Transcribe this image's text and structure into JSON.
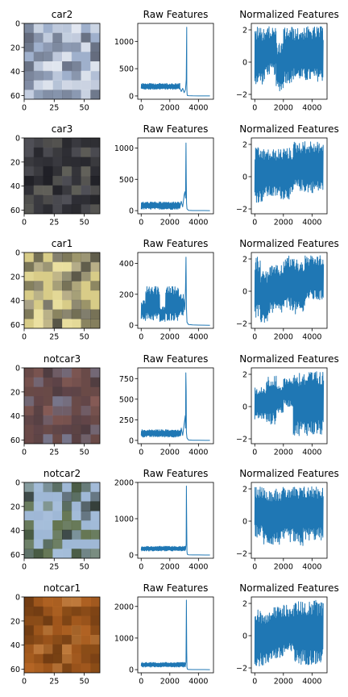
{
  "colors": {
    "line": "#1f77b4",
    "axes": "#000000",
    "background": "#ffffff"
  },
  "chart_data": [
    {
      "type": "image",
      "title": "car2",
      "xticks": [
        0,
        25,
        50
      ],
      "yticks": [
        0,
        20,
        40,
        60
      ],
      "xlim": [
        0,
        63
      ],
      "ylim": [
        63,
        0
      ],
      "image_colors": [
        "#9fb0cc",
        "#d7dde8",
        "#eef1f6",
        "#5a6070",
        "#7f8aa0"
      ]
    },
    {
      "type": "line",
      "title": "Raw Features",
      "xticks": [
        0,
        2000,
        4000
      ],
      "yticks": [
        0,
        500,
        1000
      ],
      "xlim": [
        -240,
        5050
      ],
      "ylim": [
        -60,
        1330
      ],
      "band": {
        "x_start": 0,
        "x_end": 2700,
        "low": 120,
        "high": 230
      },
      "x": [
        2700,
        2800,
        2900,
        3000,
        3100,
        3150,
        3180,
        3190,
        3200,
        3210,
        3220,
        3300,
        3600,
        4000,
        4800
      ],
      "y": [
        150,
        80,
        140,
        60,
        120,
        300,
        1260,
        200,
        80,
        30,
        10,
        5,
        2,
        1,
        0
      ]
    },
    {
      "type": "line",
      "title": "Normalized Features",
      "xticks": [
        0,
        2000,
        4000
      ],
      "yticks": [
        -2,
        0,
        2
      ],
      "xlim": [
        -240,
        5050
      ],
      "ylim": [
        -2.3,
        2.4
      ],
      "band_segments": [
        {
          "x_start": 0,
          "x_end": 700,
          "low": -1.4,
          "high": 2.2
        },
        {
          "x_start": 700,
          "x_end": 1500,
          "low": -0.8,
          "high": 2.2
        },
        {
          "x_start": 1500,
          "x_end": 2000,
          "low": -1.8,
          "high": 1.2
        },
        {
          "x_start": 2000,
          "x_end": 2700,
          "low": -1.3,
          "high": 2.2
        },
        {
          "x_start": 2700,
          "x_end": 3200,
          "low": -1.1,
          "high": 2.1
        },
        {
          "x_start": 3200,
          "x_end": 4800,
          "low": -1.2,
          "high": 2.2
        }
      ]
    },
    {
      "type": "image",
      "title": "car3",
      "xticks": [
        0,
        25,
        50
      ],
      "yticks": [
        0,
        20,
        40,
        60
      ],
      "xlim": [
        0,
        63
      ],
      "ylim": [
        63,
        0
      ],
      "image_colors": [
        "#3a3a3f",
        "#1a1a20",
        "#55555c",
        "#6b6a60",
        "#2a2a30"
      ]
    },
    {
      "type": "line",
      "title": "Raw Features",
      "xticks": [
        0,
        2000,
        4000
      ],
      "yticks": [
        0,
        500,
        1000
      ],
      "xlim": [
        -240,
        5050
      ],
      "ylim": [
        -50,
        1160
      ],
      "band": {
        "x_start": 0,
        "x_end": 2700,
        "low": 20,
        "high": 140
      },
      "x": [
        2700,
        2800,
        2900,
        3000,
        3050,
        3100,
        3130,
        3150,
        3170,
        3200,
        3300,
        3600,
        4000,
        4800
      ],
      "y": [
        40,
        150,
        60,
        250,
        300,
        200,
        1080,
        500,
        120,
        30,
        5,
        2,
        1,
        0
      ]
    },
    {
      "type": "line",
      "title": "Normalized Features",
      "xticks": [
        0,
        2000,
        4000
      ],
      "yticks": [
        -2,
        0,
        2
      ],
      "xlim": [
        -240,
        5050
      ],
      "ylim": [
        -2.3,
        2.4
      ],
      "band_segments": [
        {
          "x_start": 0,
          "x_end": 600,
          "low": -1.6,
          "high": 1.8
        },
        {
          "x_start": 600,
          "x_end": 1800,
          "low": -1.3,
          "high": 1.7
        },
        {
          "x_start": 1800,
          "x_end": 2700,
          "low": -1.4,
          "high": 1.8
        },
        {
          "x_start": 2700,
          "x_end": 3400,
          "low": -0.9,
          "high": 2.2
        },
        {
          "x_start": 3400,
          "x_end": 4800,
          "low": -1.0,
          "high": 2.2
        }
      ]
    },
    {
      "type": "image",
      "title": "car1",
      "xticks": [
        0,
        25,
        50
      ],
      "yticks": [
        0,
        20,
        40,
        60
      ],
      "xlim": [
        0,
        63
      ],
      "ylim": [
        63,
        0
      ],
      "image_colors": [
        "#d8cc88",
        "#f0e6a8",
        "#6b6a66",
        "#9a9488",
        "#3a3a38"
      ]
    },
    {
      "type": "line",
      "title": "Raw Features",
      "xticks": [
        0,
        2000,
        4000
      ],
      "yticks": [
        0,
        200,
        400
      ],
      "xlim": [
        -240,
        5050
      ],
      "ylim": [
        -20,
        470
      ],
      "band_segments": [
        {
          "x_start": 0,
          "x_end": 300,
          "low": 40,
          "high": 160
        },
        {
          "x_start": 300,
          "x_end": 1300,
          "low": 30,
          "high": 250
        },
        {
          "x_start": 1300,
          "x_end": 1700,
          "low": 20,
          "high": 120
        },
        {
          "x_start": 1700,
          "x_end": 2600,
          "low": 30,
          "high": 250
        },
        {
          "x_start": 2600,
          "x_end": 3000,
          "low": 60,
          "high": 200
        }
      ],
      "x": [
        3000,
        3050,
        3100,
        3130,
        3160,
        3200,
        3300,
        3600,
        4000,
        4800
      ],
      "y": [
        150,
        100,
        240,
        440,
        120,
        20,
        5,
        2,
        1,
        0
      ]
    },
    {
      "type": "line",
      "title": "Normalized Features",
      "xticks": [
        0,
        2000,
        4000
      ],
      "yticks": [
        -2,
        0,
        2
      ],
      "xlim": [
        -240,
        5050
      ],
      "ylim": [
        -2.3,
        2.4
      ],
      "band_segments": [
        {
          "x_start": 0,
          "x_end": 400,
          "low": -1.8,
          "high": 2.2
        },
        {
          "x_start": 400,
          "x_end": 1000,
          "low": -2.0,
          "high": 1.3
        },
        {
          "x_start": 1000,
          "x_end": 2000,
          "low": -1.4,
          "high": 1.6
        },
        {
          "x_start": 2000,
          "x_end": 2800,
          "low": -1.2,
          "high": 2.2
        },
        {
          "x_start": 2800,
          "x_end": 3500,
          "low": -1.5,
          "high": 2.0
        },
        {
          "x_start": 3500,
          "x_end": 4800,
          "low": -0.6,
          "high": 2.2
        }
      ]
    },
    {
      "type": "image",
      "title": "notcar3",
      "xticks": [
        0,
        25,
        50
      ],
      "yticks": [
        0,
        20,
        40,
        60
      ],
      "xlim": [
        0,
        63
      ],
      "ylim": [
        63,
        0
      ],
      "image_colors": [
        "#6a4a48",
        "#8a5e58",
        "#4a3a40",
        "#7a7e98",
        "#5a4248"
      ]
    },
    {
      "type": "line",
      "title": "Raw Features",
      "xticks": [
        0,
        2000,
        4000
      ],
      "yticks": [
        0,
        250,
        500,
        750
      ],
      "xlim": [
        -240,
        5050
      ],
      "ylim": [
        -40,
        880
      ],
      "band": {
        "x_start": 0,
        "x_end": 2800,
        "low": 40,
        "high": 130
      },
      "x": [
        2800,
        2900,
        3000,
        3080,
        3100,
        3120,
        3140,
        3160,
        3200,
        3300,
        3600,
        4000,
        4800
      ],
      "y": [
        150,
        60,
        200,
        300,
        150,
        820,
        600,
        100,
        30,
        5,
        2,
        1,
        0
      ]
    },
    {
      "type": "line",
      "title": "Normalized Features",
      "xticks": [
        0,
        2000,
        4000
      ],
      "yticks": [
        -2,
        0,
        2
      ],
      "xlim": [
        -240,
        5050
      ],
      "ylim": [
        -2.3,
        2.4
      ],
      "band_segments": [
        {
          "x_start": 0,
          "x_end": 800,
          "low": -0.8,
          "high": 1.2
        },
        {
          "x_start": 800,
          "x_end": 1500,
          "low": -1.1,
          "high": 1.9
        },
        {
          "x_start": 1500,
          "x_end": 2000,
          "low": -0.4,
          "high": 1.3
        },
        {
          "x_start": 2000,
          "x_end": 2700,
          "low": 0.0,
          "high": 1.8
        },
        {
          "x_start": 2700,
          "x_end": 4800,
          "low": -1.8,
          "high": 2.2
        }
      ]
    },
    {
      "type": "image",
      "title": "notcar2",
      "xticks": [
        0,
        25,
        50
      ],
      "yticks": [
        0,
        20,
        40,
        60
      ],
      "xlim": [
        0,
        63
      ],
      "ylim": [
        63,
        0
      ],
      "image_colors": [
        "#9fb8d6",
        "#a8c0dc",
        "#3a4a2a",
        "#5a6a3a",
        "#1e2418"
      ]
    },
    {
      "type": "line",
      "title": "Raw Features",
      "xticks": [
        0,
        2000,
        4000
      ],
      "yticks": [
        0,
        1000,
        2000
      ],
      "xlim": [
        -240,
        5050
      ],
      "ylim": [
        -90,
        2000
      ],
      "band": {
        "x_start": 0,
        "x_end": 3100,
        "low": 110,
        "high": 240
      },
      "x": [
        3100,
        3140,
        3160,
        3180,
        3200,
        3220,
        3300,
        3600,
        4000,
        4800
      ],
      "y": [
        150,
        300,
        1900,
        800,
        100,
        20,
        5,
        2,
        1,
        0
      ]
    },
    {
      "type": "line",
      "title": "Normalized Features",
      "xticks": [
        0,
        2000,
        4000
      ],
      "yticks": [
        -2,
        0,
        2
      ],
      "xlim": [
        -240,
        5050
      ],
      "ylim": [
        -2.3,
        2.4
      ],
      "band_segments": [
        {
          "x_start": 0,
          "x_end": 600,
          "low": -1.0,
          "high": 2.2
        },
        {
          "x_start": 600,
          "x_end": 2000,
          "low": -1.5,
          "high": 2.1
        },
        {
          "x_start": 2000,
          "x_end": 2800,
          "low": -1.3,
          "high": 2.2
        },
        {
          "x_start": 2800,
          "x_end": 3400,
          "low": -1.6,
          "high": 2.1
        },
        {
          "x_start": 3400,
          "x_end": 4800,
          "low": -1.2,
          "high": 2.2
        }
      ]
    },
    {
      "type": "image",
      "title": "notcar1",
      "xticks": [
        0,
        25,
        50
      ],
      "yticks": [
        0,
        20,
        40,
        60
      ],
      "xlim": [
        0,
        63
      ],
      "ylim": [
        63,
        0
      ],
      "image_colors": [
        "#8a4c18",
        "#a65a1e",
        "#c06c28",
        "#d08a48",
        "#6e3a12"
      ]
    },
    {
      "type": "line",
      "title": "Raw Features",
      "xticks": [
        0,
        2000,
        4000
      ],
      "yticks": [
        0,
        1000,
        2000
      ],
      "xlim": [
        -240,
        5050
      ],
      "ylim": [
        -100,
        2300
      ],
      "band": {
        "x_start": 0,
        "x_end": 3100,
        "low": 80,
        "high": 230
      },
      "x": [
        3100,
        3130,
        3160,
        3180,
        3200,
        3220,
        3300,
        3600,
        4000,
        4800
      ],
      "y": [
        150,
        250,
        2200,
        600,
        80,
        20,
        5,
        2,
        1,
        0
      ]
    },
    {
      "type": "line",
      "title": "Normalized Features",
      "xticks": [
        0,
        2000,
        4000
      ],
      "yticks": [
        -2,
        0,
        2
      ],
      "xlim": [
        -240,
        5050
      ],
      "ylim": [
        -2.3,
        2.4
      ],
      "band_segments": [
        {
          "x_start": 0,
          "x_end": 1000,
          "low": -1.9,
          "high": 1.6
        },
        {
          "x_start": 1000,
          "x_end": 2000,
          "low": -1.5,
          "high": 1.8
        },
        {
          "x_start": 2000,
          "x_end": 2800,
          "low": -1.2,
          "high": 1.9
        },
        {
          "x_start": 2800,
          "x_end": 4800,
          "low": -1.8,
          "high": 2.2
        }
      ]
    }
  ]
}
